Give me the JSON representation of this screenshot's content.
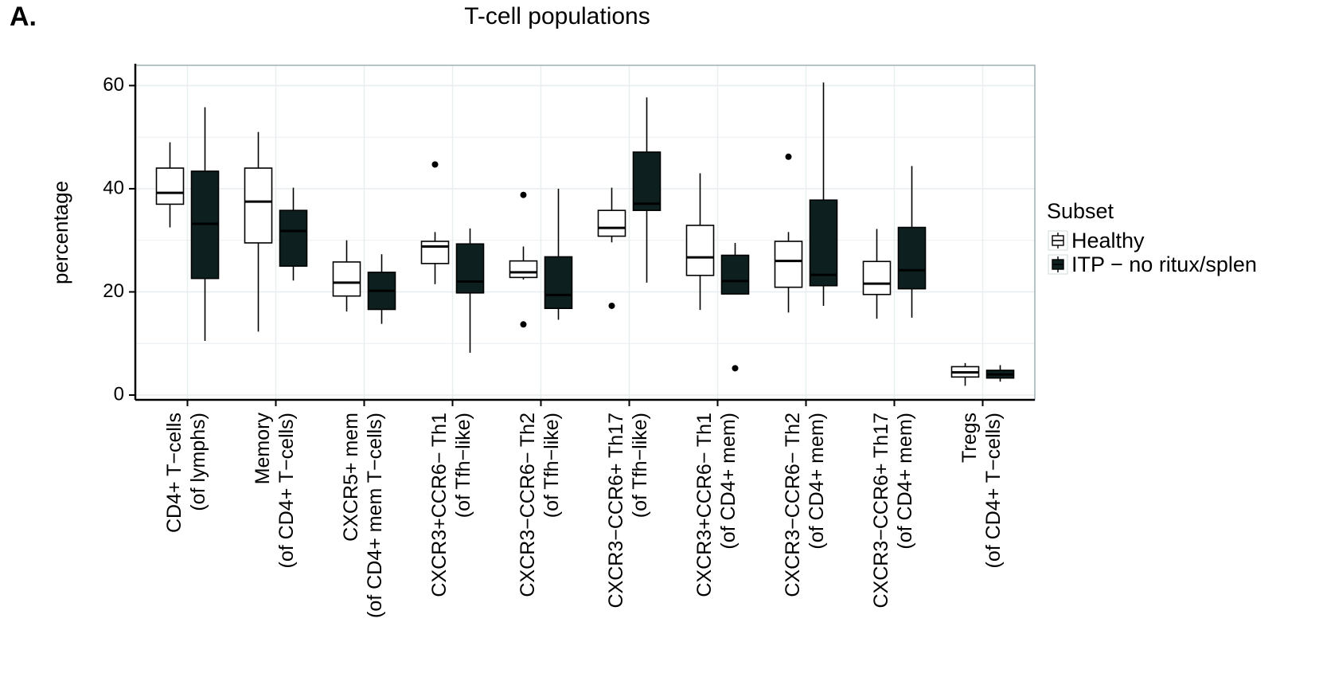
{
  "figure": {
    "panel_label": "A.",
    "title": "T-cell populations"
  },
  "chart_data": {
    "type": "box",
    "title": "T-cell populations",
    "xlabel": "",
    "ylabel": "percentage",
    "ylim": [
      0,
      63
    ],
    "yticks": [
      0,
      20,
      40,
      60
    ],
    "grid": true,
    "legend": {
      "title": "Subset",
      "position": "right",
      "entries": [
        {
          "name": "Healthy",
          "fill": "#ffffff"
        },
        {
          "name": "ITP − no ritux/splen",
          "fill": "#0d1f1f"
        }
      ]
    },
    "categories": [
      [
        "CD4+ T−cells",
        "(of lymphs)"
      ],
      [
        "Memory",
        "(of CD4+ T−cells)"
      ],
      [
        "CXCR5+ mem",
        "(of CD4+ mem T−cells)"
      ],
      [
        "CXCR3+CCR6− Th1",
        "(of Tfh−like)"
      ],
      [
        "CXCR3−CCR6− Th2",
        "(of Tfh−like)"
      ],
      [
        "CXCR3−CCR6+ Th17",
        "(of Tfh−like)"
      ],
      [
        "CXCR3+CCR6− Th1",
        "(of CD4+ mem)"
      ],
      [
        "CXCR3−CCR6− Th2",
        "(of CD4+ mem)"
      ],
      [
        "CXCR3−CCR6+ Th17",
        "(of CD4+ mem)"
      ],
      [
        "Tregs",
        "(of CD4+ T−cells)"
      ]
    ],
    "series": [
      {
        "name": "Healthy",
        "boxes": [
          {
            "min": 32.5,
            "q1": 37,
            "median": 39.2,
            "q3": 44,
            "max": 49,
            "outliers": []
          },
          {
            "min": 12.3,
            "q1": 29.5,
            "median": 37.5,
            "q3": 44,
            "max": 51,
            "outliers": []
          },
          {
            "min": 16.2,
            "q1": 19.2,
            "median": 21.8,
            "q3": 25.8,
            "max": 30,
            "outliers": []
          },
          {
            "min": 21.5,
            "q1": 25.5,
            "median": 28.8,
            "q3": 29.8,
            "max": 31.6,
            "outliers": [
              44.7
            ]
          },
          {
            "min": 22.4,
            "q1": 22.8,
            "median": 23.8,
            "q3": 26,
            "max": 28.8,
            "outliers": [
              38.8,
              13.7
            ]
          },
          {
            "min": 29.6,
            "q1": 30.8,
            "median": 32.4,
            "q3": 35.8,
            "max": 40.2,
            "outliers": [
              17.3
            ]
          },
          {
            "min": 16.5,
            "q1": 23.2,
            "median": 26.7,
            "q3": 32.9,
            "max": 43,
            "outliers": []
          },
          {
            "min": 16,
            "q1": 20.9,
            "median": 26,
            "q3": 29.8,
            "max": 31.6,
            "outliers": [
              46.2
            ]
          },
          {
            "min": 14.8,
            "q1": 19.5,
            "median": 21.6,
            "q3": 25.9,
            "max": 32.2,
            "outliers": []
          },
          {
            "min": 1.8,
            "q1": 3.5,
            "median": 4.4,
            "q3": 5.5,
            "max": 6.2,
            "outliers": []
          }
        ]
      },
      {
        "name": "ITP − no ritux/splen",
        "boxes": [
          {
            "min": 10.5,
            "q1": 22.6,
            "median": 33.2,
            "q3": 43.4,
            "max": 55.8,
            "outliers": []
          },
          {
            "min": 22.2,
            "q1": 25,
            "median": 31.8,
            "q3": 35.8,
            "max": 40.2,
            "outliers": []
          },
          {
            "min": 13.8,
            "q1": 16.6,
            "median": 20.2,
            "q3": 23.8,
            "max": 27.3,
            "outliers": []
          },
          {
            "min": 8.2,
            "q1": 19.8,
            "median": 22,
            "q3": 29.3,
            "max": 32.3,
            "outliers": []
          },
          {
            "min": 14.6,
            "q1": 16.8,
            "median": 19.4,
            "q3": 26.8,
            "max": 40,
            "outliers": []
          },
          {
            "min": 21.8,
            "q1": 35.8,
            "median": 37.1,
            "q3": 47.1,
            "max": 57.7,
            "outliers": []
          },
          {
            "min": 19.6,
            "q1": 19.6,
            "median": 22.1,
            "q3": 27.1,
            "max": 29.5,
            "outliers": [
              5.2
            ]
          },
          {
            "min": 17.3,
            "q1": 21.2,
            "median": 23.3,
            "q3": 37.8,
            "max": 60.6,
            "outliers": []
          },
          {
            "min": 15,
            "q1": 20.6,
            "median": 24.2,
            "q3": 32.5,
            "max": 44.4,
            "outliers": []
          },
          {
            "min": 2.6,
            "q1": 3.3,
            "median": 4,
            "q3": 4.8,
            "max": 5.8,
            "outliers": []
          }
        ]
      }
    ]
  },
  "colors": {
    "healthy_fill": "#ffffff",
    "itp_fill": "#0d1f1f",
    "itp_median": "#000000",
    "grid": "#e8eef0",
    "panel_border": "#9fb0b3",
    "axis": "#000000"
  }
}
